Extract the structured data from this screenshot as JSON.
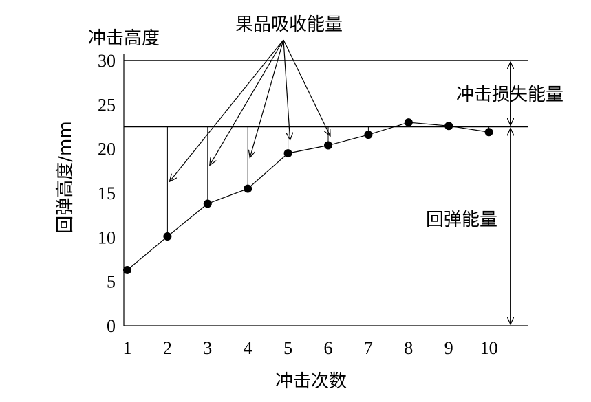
{
  "chart_data": {
    "type": "line",
    "title": "",
    "ylabel": "回弹高度/mm",
    "ylabel_top": "冲击高度",
    "xlabel": "冲击次数",
    "x": [
      1,
      2,
      3,
      4,
      5,
      6,
      7,
      8,
      9,
      10
    ],
    "series": [
      {
        "values": [
          6.3,
          10.1,
          13.8,
          15.5,
          19.5,
          20.4,
          21.6,
          23.0,
          22.6,
          21.9
        ]
      }
    ],
    "xticks": [
      "1",
      "2",
      "3",
      "4",
      "5",
      "6",
      "7",
      "8",
      "9",
      "10"
    ],
    "yticks": [
      "0",
      "5",
      "10",
      "15",
      "20",
      "25",
      "30"
    ],
    "ylim": [
      0,
      30
    ],
    "xlim": [
      0.9,
      11.0
    ],
    "impact_height": 30,
    "reference_height": 22.5,
    "annotations": {
      "absorbed": "果品吸收能量",
      "impact_loss": "冲击损失能量",
      "rebound": "回弹能量"
    },
    "absorbed_arrow_x": [
      2,
      3,
      4,
      5,
      6
    ],
    "grid": false,
    "legend": "none"
  }
}
